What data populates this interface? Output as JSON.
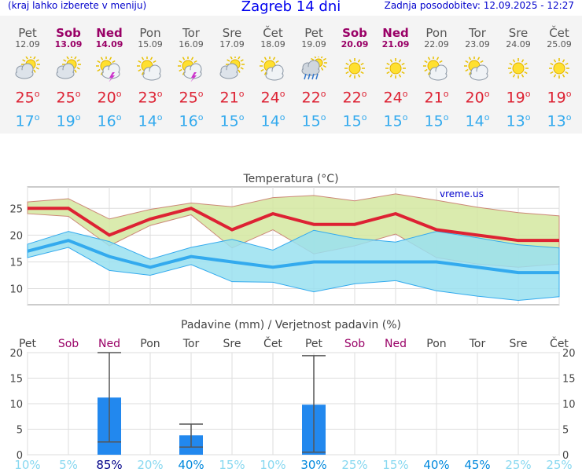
{
  "header": {
    "menu_hint": "(kraj lahko izberete v meniju)",
    "title": "Zagreb 14 dni",
    "updated": "Zadnja posodobitev: 12.09.2025 - 12:27"
  },
  "days": [
    {
      "name": "Pet",
      "date": "12.09",
      "weekend": false,
      "icon": "cloudy-sun-icon",
      "max": "25",
      "min": "17"
    },
    {
      "name": "Sob",
      "date": "13.09",
      "weekend": true,
      "icon": "cloudy-sun-icon",
      "max": "25",
      "min": "19"
    },
    {
      "name": "Ned",
      "date": "14.09",
      "weekend": true,
      "icon": "sun-storm-icon",
      "max": "20",
      "min": "16"
    },
    {
      "name": "Pon",
      "date": "15.09",
      "weekend": false,
      "icon": "sun-cloud-icon",
      "max": "23",
      "min": "14"
    },
    {
      "name": "Tor",
      "date": "16.09",
      "weekend": false,
      "icon": "sun-storm-icon",
      "max": "25",
      "min": "16"
    },
    {
      "name": "Sre",
      "date": "17.09",
      "weekend": false,
      "icon": "cloudy-sun-icon",
      "max": "21",
      "min": "15"
    },
    {
      "name": "Čet",
      "date": "18.09",
      "weekend": false,
      "icon": "sun-cloud-icon",
      "max": "24",
      "min": "14"
    },
    {
      "name": "Pet",
      "date": "19.09",
      "weekend": false,
      "icon": "rain-cloud-icon",
      "max": "22",
      "min": "15"
    },
    {
      "name": "Sob",
      "date": "20.09",
      "weekend": true,
      "icon": "sun-icon",
      "max": "22",
      "min": "15"
    },
    {
      "name": "Ned",
      "date": "21.09",
      "weekend": true,
      "icon": "sun-icon",
      "max": "24",
      "min": "15"
    },
    {
      "name": "Pon",
      "date": "22.09",
      "weekend": false,
      "icon": "sun-cloud-icon",
      "max": "21",
      "min": "15"
    },
    {
      "name": "Tor",
      "date": "23.09",
      "weekend": false,
      "icon": "sun-cloud-icon",
      "max": "20",
      "min": "14"
    },
    {
      "name": "Sre",
      "date": "24.09",
      "weekend": false,
      "icon": "sun-icon",
      "max": "19",
      "min": "13"
    },
    {
      "name": "Čet",
      "date": "25.09",
      "weekend": false,
      "icon": "sun-icon",
      "max": "19",
      "min": "13"
    }
  ],
  "colors": {
    "max": "#dd2233",
    "min": "#33aaee",
    "weekend": "#990066",
    "bar": "#2288ee",
    "band_max": "#d4e8a0",
    "band_min": "#99e0f0"
  },
  "temp_chart": {
    "title": "Temperatura (°C)",
    "watermark": "vreme.us",
    "yticks": [
      10,
      15,
      20,
      25
    ],
    "ylim": [
      7,
      29
    ]
  },
  "precip_chart": {
    "title": "Padavine (mm) / Verjetnost padavin (%)",
    "yticks": [
      0,
      5,
      10,
      15,
      20
    ],
    "ylim": [
      0,
      20
    ]
  },
  "chart_data": [
    {
      "type": "line",
      "x": [
        "Pet",
        "Sob",
        "Ned",
        "Pon",
        "Tor",
        "Sre",
        "Čet",
        "Pet",
        "Sob",
        "Ned",
        "Pon",
        "Tor",
        "Sre",
        "Čet"
      ],
      "series": [
        {
          "values": [
            25,
            25,
            20,
            23,
            25,
            21,
            24,
            22,
            22,
            24,
            21,
            20,
            19,
            19
          ]
        },
        {
          "values": [
            17,
            19,
            16,
            14,
            16,
            15,
            14,
            15,
            15,
            15,
            15,
            14,
            13,
            13
          ]
        }
      ],
      "band_max_high": [
        26.2,
        26.8,
        23,
        24.8,
        26,
        25.3,
        27,
        27.4,
        26.4,
        27.7,
        26.5,
        25.2,
        24.2,
        23.6
      ],
      "band_max_low": [
        24,
        23.5,
        18,
        21.8,
        23.8,
        17.6,
        21,
        16.5,
        18,
        20.2,
        15.8,
        14.6,
        14,
        14.6
      ],
      "band_min_high": [
        18.3,
        20.7,
        18.8,
        15.5,
        17.7,
        19.2,
        17.2,
        20.9,
        19.4,
        18.7,
        20.7,
        19.5,
        18.2,
        17.6
      ],
      "band_min_low": [
        15.8,
        17.7,
        13.4,
        12.5,
        14.5,
        11.3,
        11.2,
        9.4,
        10.9,
        11.5,
        9.6,
        8.6,
        7.8,
        8.5
      ],
      "ylim": [
        7,
        29
      ]
    },
    {
      "type": "bar",
      "categories": [
        "Pet",
        "Sob",
        "Ned",
        "Pon",
        "Tor",
        "Sre",
        "Čet",
        "Pet",
        "Sob",
        "Ned",
        "Pon",
        "Tor",
        "Sre",
        "Čet"
      ],
      "values": [
        0,
        0,
        11.2,
        0,
        3.8,
        0,
        0,
        9.8,
        0,
        0,
        0,
        0,
        0,
        0
      ],
      "err_low": [
        0,
        0,
        2.5,
        0,
        1.5,
        0,
        0,
        0.5,
        0,
        0,
        0,
        0,
        0,
        0
      ],
      "err_high": [
        0,
        0,
        20,
        0,
        6,
        0,
        0,
        19.4,
        0,
        0,
        0,
        0,
        0,
        0
      ],
      "probability": [
        "10%",
        "5%",
        "85%",
        "20%",
        "40%",
        "15%",
        "10%",
        "30%",
        "25%",
        "15%",
        "40%",
        "45%",
        "25%",
        "25%"
      ],
      "ylim": [
        0,
        20
      ]
    }
  ]
}
